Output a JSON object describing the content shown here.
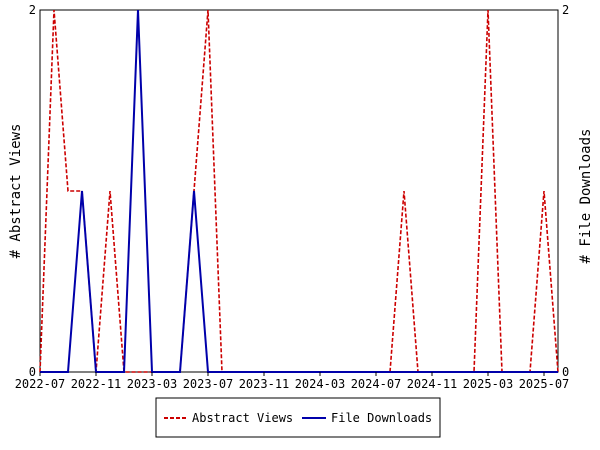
{
  "chart_data": {
    "type": "line",
    "x_label_dates": [
      "2022-07",
      "2022-11",
      "2023-03",
      "2023-07",
      "2023-11",
      "2024-03",
      "2024-07",
      "2024-11",
      "2025-03",
      "2025-07"
    ],
    "x": [
      "2022-07",
      "2022-08",
      "2022-09",
      "2022-10",
      "2022-11",
      "2022-12",
      "2023-01",
      "2023-02",
      "2023-03",
      "2023-04",
      "2023-05",
      "2023-06",
      "2023-07",
      "2023-08",
      "2023-09",
      "2023-10",
      "2023-11",
      "2023-12",
      "2024-01",
      "2024-02",
      "2024-03",
      "2024-04",
      "2024-05",
      "2024-06",
      "2024-07",
      "2024-08",
      "2024-09",
      "2024-10",
      "2024-11",
      "2024-12",
      "2025-01",
      "2025-02",
      "2025-03",
      "2025-04",
      "2025-05",
      "2025-06",
      "2025-07",
      "2025-08"
    ],
    "series": [
      {
        "name": "Abstract Views",
        "color": "#cc0000",
        "dash": "dashed",
        "axis": "left",
        "values": [
          0,
          2,
          1,
          1,
          0,
          1,
          0,
          0,
          0,
          0,
          0,
          1,
          2,
          0,
          0,
          0,
          0,
          0,
          0,
          0,
          0,
          0,
          0,
          0,
          0,
          0,
          1,
          0,
          0,
          0,
          0,
          0,
          2,
          0,
          0,
          0,
          1,
          0
        ]
      },
      {
        "name": "File Downloads",
        "color": "#0000aa",
        "dash": "solid",
        "axis": "right",
        "values": [
          0,
          0,
          0,
          1,
          0,
          0,
          0,
          2,
          0,
          0,
          0,
          1,
          0,
          0,
          0,
          0,
          0,
          0,
          0,
          0,
          0,
          0,
          0,
          0,
          0,
          0,
          0,
          0,
          0,
          0,
          0,
          0,
          0,
          0,
          0,
          0,
          0,
          0
        ]
      }
    ],
    "y_left": {
      "label": "# Abstract Views",
      "ticks": [
        "0",
        "2"
      ],
      "range": [
        0,
        2
      ]
    },
    "y_right": {
      "label": "# File Downloads",
      "ticks": [
        "0",
        "2"
      ],
      "range": [
        0,
        2
      ]
    },
    "grid": false,
    "legend_position": "bottom-center"
  }
}
